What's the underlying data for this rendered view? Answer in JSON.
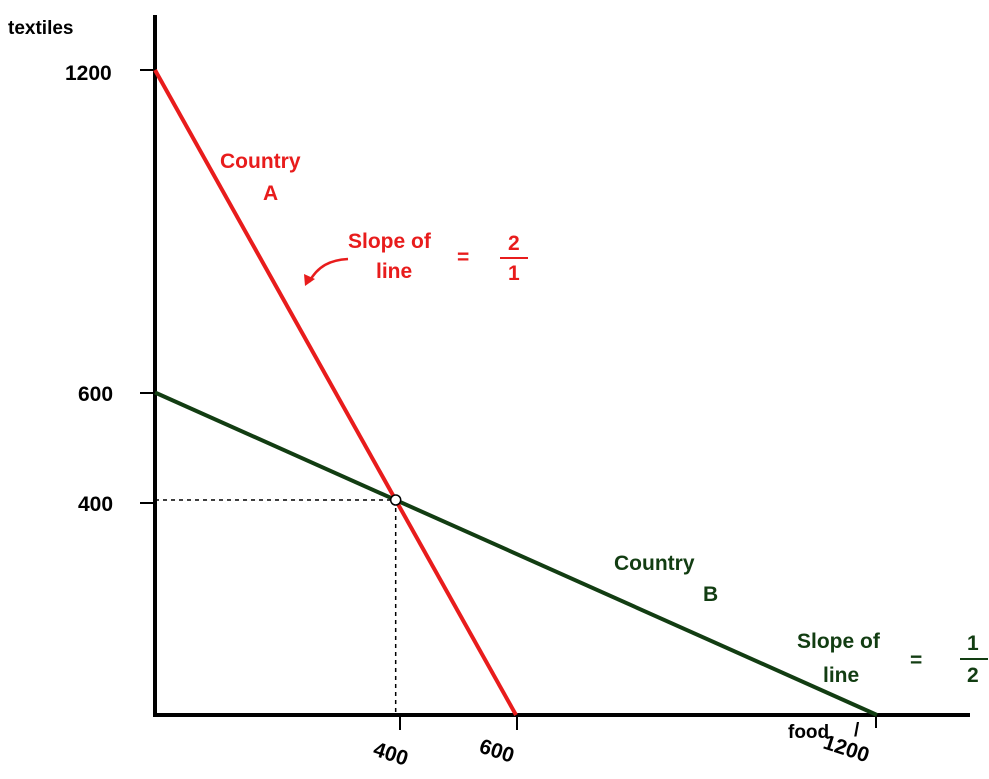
{
  "chart_data": {
    "type": "line",
    "ylabel": "textiles",
    "xlabel": "food",
    "xlim": [
      0,
      1200
    ],
    "ylim": [
      0,
      1200
    ],
    "y_ticks": [
      1200,
      600,
      400
    ],
    "x_ticks": [
      400,
      600,
      1200
    ],
    "series": [
      {
        "name": "Country A",
        "color": "#e81c1c",
        "points": [
          [
            0,
            1200
          ],
          [
            600,
            0
          ]
        ]
      },
      {
        "name": "Country B",
        "color": "#123d12",
        "points": [
          [
            0,
            600
          ],
          [
            1200,
            0
          ]
        ]
      }
    ],
    "intersection": {
      "x": 400,
      "y": 400
    },
    "annotations": {
      "country_a": {
        "line1": "Country",
        "line2": "A"
      },
      "country_b": {
        "line1": "Country",
        "line2": "B"
      },
      "slope_a": {
        "line1": "Slope of",
        "line2": "line",
        "equals": "=",
        "numerator": "2",
        "denominator": "1"
      },
      "slope_b": {
        "line1": "Slope of",
        "line2": "line",
        "equals": "=",
        "numerator": "1",
        "denominator": "2"
      }
    },
    "x_axis_mark": "/"
  }
}
